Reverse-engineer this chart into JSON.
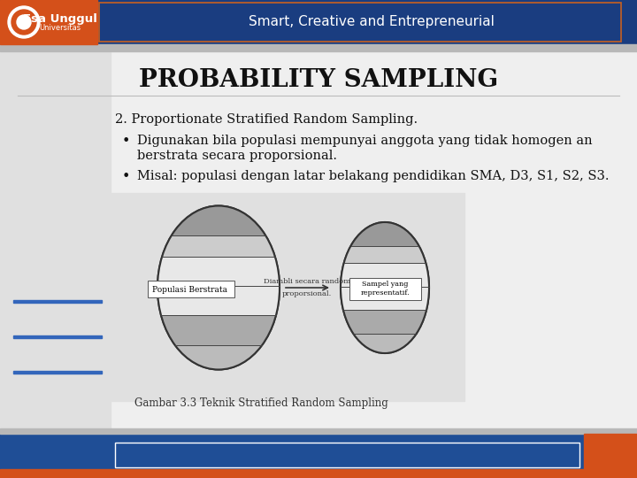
{
  "title": "PROBABILITY SAMPLING",
  "header_text": "Smart, Creative and Entrepreneurial",
  "header_bg": "#1f4e96",
  "header_orange": "#d4501a",
  "slide_bg_top": "#b0b8c8",
  "slide_bg_main": "#e8e8e8",
  "content_bg": "#f2f2f2",
  "line1": "2. Proportionate Stratified Random Sampling.",
  "bullet1_line1": "Digunakan bila populasi mempunyai anggota yang tidak homogen an",
  "bullet1_line2": "berstrata secara proporsional.",
  "bullet2": "Misal: populasi dengan latar belakang pendidikan SMA, D3, S1, S2, S3.",
  "fig_caption": "Gambar 3.3 Teknik Stratified Random Sampling",
  "pop_label": "Populasi Berstrata",
  "arrow_text1": "Diambli secara random",
  "arrow_text2": "proporsional.",
  "sample_label": "Sampel yang\nrepresentatif.",
  "footer_bg": "#1f4e96",
  "footer_orange": "#d4501a",
  "title_fontsize": 20,
  "body_fontsize": 10.5
}
